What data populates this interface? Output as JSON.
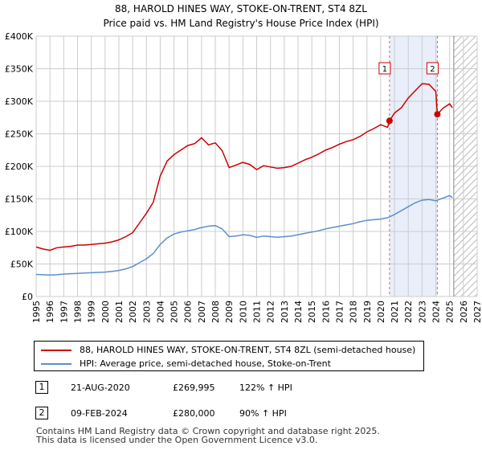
{
  "title_line1": "88, HAROLD HINES WAY, STOKE-ON-TRENT, ST4 8ZL",
  "title_line2": "Price paid vs. HM Land Registry's House Price Index (HPI)",
  "legend": {
    "property": "88, HAROLD HINES WAY, STOKE-ON-TRENT, ST4 8ZL (semi-detached house)",
    "hpi": "HPI: Average price, semi-detached house, Stoke-on-Trent"
  },
  "transactions": [
    {
      "num": "1",
      "date": "21-AUG-2020",
      "price": "£269,995",
      "hpi": "122% ↑ HPI"
    },
    {
      "num": "2",
      "date": "09-FEB-2024",
      "price": "£280,000",
      "hpi": "90% ↑ HPI"
    }
  ],
  "footer_line1": "Contains HM Land Registry data © Crown copyright and database right 2025.",
  "footer_line2": "This data is licensed under the Open Government Licence v3.0.",
  "colors": {
    "property_line": "#cc0000",
    "hpi_line": "#5b8fcc",
    "shade": "#e8eefa",
    "grid": "#cccccc",
    "vline": "#e06060"
  },
  "chart_data": {
    "type": "line",
    "title": "Price paid vs. HM Land Registry's House Price Index (HPI)",
    "xlabel": "",
    "ylabel": "",
    "xlim": [
      1995,
      2027
    ],
    "ylim": [
      0,
      400000
    ],
    "grid": true,
    "y_ticks": [
      0,
      50000,
      100000,
      150000,
      200000,
      250000,
      300000,
      350000,
      400000
    ],
    "y_tick_labels": [
      "£0",
      "£50K",
      "£100K",
      "£150K",
      "£200K",
      "£250K",
      "£300K",
      "£350K",
      "£400K"
    ],
    "x_ticks": [
      1995,
      1996,
      1997,
      1998,
      1999,
      2000,
      2001,
      2002,
      2003,
      2004,
      2005,
      2006,
      2007,
      2008,
      2009,
      2010,
      2011,
      2012,
      2013,
      2014,
      2015,
      2016,
      2017,
      2018,
      2019,
      2020,
      2021,
      2022,
      2023,
      2024,
      2025,
      2026,
      2027
    ],
    "shaded_period": [
      2020.64,
      2024.11
    ],
    "forecast_hatch_start": 2025.3,
    "events": [
      {
        "label": "1",
        "x": 2020.64,
        "y": 269995
      },
      {
        "label": "2",
        "x": 2024.11,
        "y": 280000
      }
    ],
    "series": [
      {
        "name": "88, HAROLD HINES WAY, STOKE-ON-TRENT, ST4 8ZL (semi-detached house)",
        "x": [
          1995.0,
          1995.5,
          1996.0,
          1996.5,
          1997.0,
          1997.5,
          1998.0,
          1998.5,
          1999.0,
          1999.5,
          2000.0,
          2000.5,
          2001.0,
          2001.5,
          2002.0,
          2002.5,
          2003.0,
          2003.5,
          2004.0,
          2004.5,
          2005.0,
          2005.5,
          2006.0,
          2006.5,
          2007.0,
          2007.5,
          2008.0,
          2008.5,
          2009.0,
          2009.5,
          2010.0,
          2010.5,
          2011.0,
          2011.5,
          2012.0,
          2012.5,
          2013.0,
          2013.5,
          2014.0,
          2014.5,
          2015.0,
          2015.5,
          2016.0,
          2016.5,
          2017.0,
          2017.5,
          2018.0,
          2018.5,
          2019.0,
          2019.5,
          2020.0,
          2020.5,
          2020.64,
          2021.0,
          2021.5,
          2022.0,
          2022.5,
          2023.0,
          2023.5,
          2024.0,
          2024.11,
          2024.5,
          2025.0,
          2025.2
        ],
        "values": [
          76000,
          73000,
          71000,
          75000,
          76000,
          77000,
          79000,
          79000,
          80000,
          81000,
          82000,
          84000,
          87000,
          92000,
          98000,
          113000,
          128000,
          145000,
          185000,
          208000,
          218000,
          225000,
          232000,
          235000,
          244000,
          233000,
          236000,
          224000,
          198000,
          202000,
          206000,
          203000,
          195000,
          201000,
          199000,
          197000,
          198000,
          200000,
          205000,
          210000,
          214000,
          219000,
          225000,
          229000,
          234000,
          238000,
          241000,
          246000,
          253000,
          258000,
          264000,
          260000,
          269995,
          282000,
          290000,
          305000,
          316000,
          327000,
          326000,
          315000,
          280000,
          289000,
          296000,
          290000
        ]
      },
      {
        "name": "HPI: Average price, semi-detached house, Stoke-on-Trent",
        "x": [
          1995.0,
          1995.5,
          1996.0,
          1996.5,
          1997.0,
          1997.5,
          1998.0,
          1998.5,
          1999.0,
          1999.5,
          2000.0,
          2000.5,
          2001.0,
          2001.5,
          2002.0,
          2002.5,
          2003.0,
          2003.5,
          2004.0,
          2004.5,
          2005.0,
          2005.5,
          2006.0,
          2006.5,
          2007.0,
          2007.5,
          2008.0,
          2008.5,
          2009.0,
          2009.5,
          2010.0,
          2010.5,
          2011.0,
          2011.5,
          2012.0,
          2012.5,
          2013.0,
          2013.5,
          2014.0,
          2014.5,
          2015.0,
          2015.5,
          2016.0,
          2016.5,
          2017.0,
          2017.5,
          2018.0,
          2018.5,
          2019.0,
          2019.5,
          2020.0,
          2020.5,
          2021.0,
          2021.5,
          2022.0,
          2022.5,
          2023.0,
          2023.5,
          2024.0,
          2024.5,
          2025.0,
          2025.2
        ],
        "values": [
          34000,
          33500,
          33000,
          33500,
          34500,
          35000,
          35500,
          36000,
          36500,
          37000,
          37500,
          38500,
          40000,
          42500,
          46000,
          52000,
          58000,
          66000,
          80000,
          90000,
          96000,
          99000,
          101000,
          103000,
          106000,
          108000,
          109000,
          104000,
          92000,
          93000,
          95000,
          94000,
          91000,
          93000,
          92000,
          91000,
          92000,
          93000,
          95000,
          97000,
          99000,
          101000,
          104000,
          106000,
          108000,
          110000,
          112000,
          115000,
          117000,
          118000,
          119000,
          121000,
          126000,
          132000,
          138000,
          144000,
          148000,
          149000,
          147000,
          151000,
          155000,
          152000
        ]
      }
    ]
  }
}
